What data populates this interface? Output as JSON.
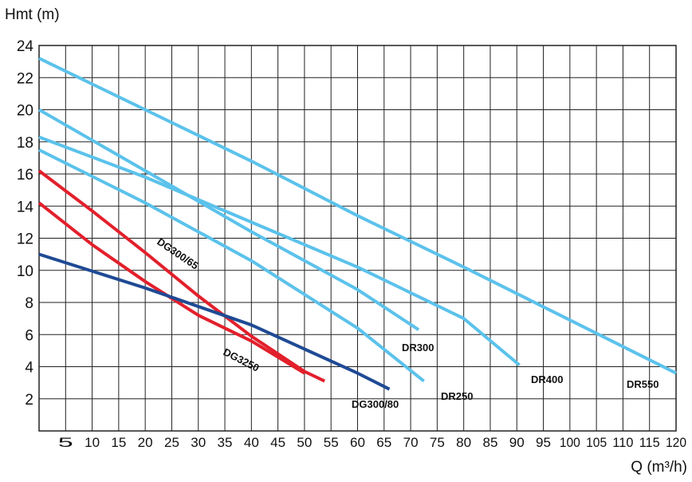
{
  "chart_data": {
    "type": "line",
    "title": "",
    "xlabel": "Q (m³/h)",
    "ylabel": "Hmt (m)",
    "xlim": [
      0,
      120
    ],
    "ylim": [
      0,
      24
    ],
    "grid": true,
    "x_ticks": [
      5,
      10,
      15,
      20,
      25,
      30,
      35,
      40,
      45,
      50,
      55,
      60,
      65,
      70,
      75,
      80,
      85,
      90,
      95,
      100,
      105,
      110,
      115,
      120
    ],
    "y_ticks": [
      2,
      4,
      6,
      8,
      10,
      12,
      14,
      16,
      18,
      20,
      22,
      24
    ],
    "series": [
      {
        "name": "DR550",
        "color": "#5bc2eb",
        "points": [
          [
            0,
            23.2
          ],
          [
            20,
            20
          ],
          [
            40,
            16.8
          ],
          [
            60,
            13.4
          ],
          [
            80,
            10.2
          ],
          [
            100,
            6.9
          ],
          [
            120,
            3.6
          ]
        ]
      },
      {
        "name": "DR400",
        "color": "#5bc2eb",
        "points": [
          [
            0,
            18.3
          ],
          [
            20,
            15.8
          ],
          [
            40,
            13
          ],
          [
            60,
            10.2
          ],
          [
            80,
            7
          ],
          [
            90.5,
            4.1
          ]
        ]
      },
      {
        "name": "DR300",
        "color": "#5bc2eb",
        "points": [
          [
            0,
            20
          ],
          [
            20,
            16.2
          ],
          [
            40,
            12.4
          ],
          [
            60,
            8.8
          ],
          [
            71.5,
            6.3
          ]
        ]
      },
      {
        "name": "DR250",
        "color": "#5bc2eb",
        "points": [
          [
            0,
            17.5
          ],
          [
            20,
            14.2
          ],
          [
            40,
            10.6
          ],
          [
            60,
            6.4
          ],
          [
            72.5,
            3.1
          ]
        ]
      },
      {
        "name": "DG300/65",
        "color": "#e2202c",
        "points": [
          [
            0,
            16.2
          ],
          [
            10,
            13.7
          ],
          [
            20,
            11.1
          ],
          [
            30,
            8.4
          ],
          [
            40,
            5.9
          ],
          [
            50,
            3.7
          ],
          [
            53.8,
            3.1
          ]
        ]
      },
      {
        "name": "DG3250",
        "color": "#e2202c",
        "points": [
          [
            0,
            14.2
          ],
          [
            10,
            11.6
          ],
          [
            20,
            9.3
          ],
          [
            30,
            7.2
          ],
          [
            40,
            5.6
          ],
          [
            50,
            3.6
          ]
        ]
      },
      {
        "name": "DG300/80",
        "color": "#1f4a94",
        "points": [
          [
            0,
            11
          ],
          [
            20,
            8.9
          ],
          [
            40,
            6.6
          ],
          [
            60,
            3.6
          ],
          [
            66,
            2.6
          ]
        ]
      }
    ],
    "labels": [
      {
        "text": "DG300/65",
        "series": "DG300/65"
      },
      {
        "text": "DG3250",
        "series": "DG3250"
      },
      {
        "text": "DR300",
        "series": "DR300"
      },
      {
        "text": "DR250",
        "series": "DR250"
      },
      {
        "text": "DR400",
        "series": "DR400"
      },
      {
        "text": "DR550",
        "series": "DR550"
      },
      {
        "text": "DG300/80",
        "series": "DG300/80"
      }
    ]
  }
}
